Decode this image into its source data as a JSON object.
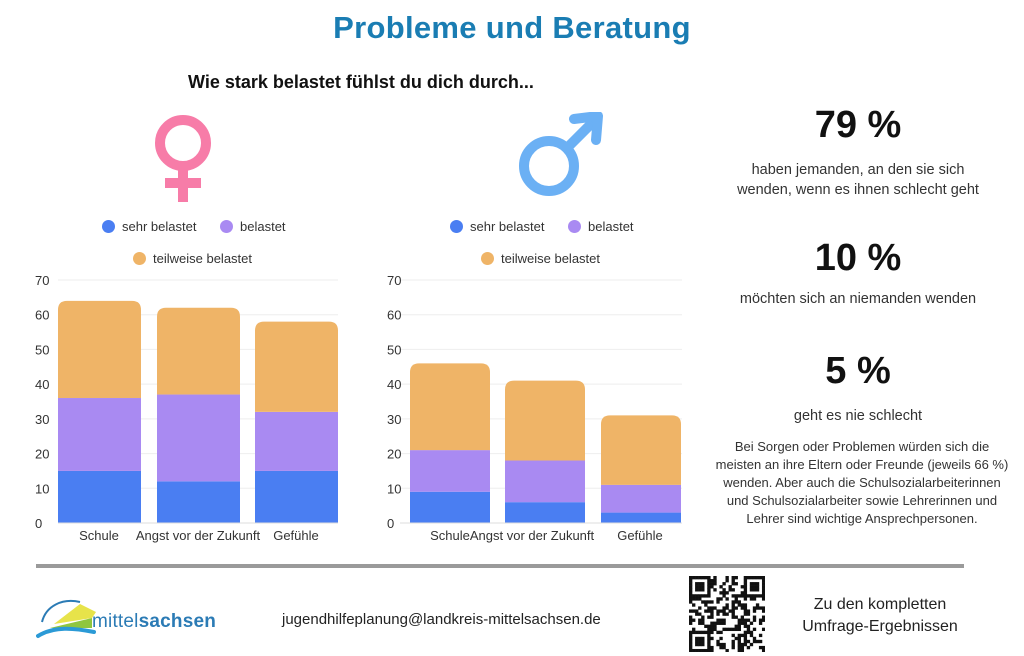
{
  "header": {
    "title": "Probleme und Beratung",
    "subtitle": "Wie stark belastet fühlst du dich durch..."
  },
  "colors": {
    "title": "#1a7db3",
    "sehr_belastet": "#4a7ef2",
    "belastet": "#a98af2",
    "teilweise_belastet": "#efb467",
    "female_symbol": "#f77ca8",
    "male_symbol": "#6bb0f4"
  },
  "icons": {
    "female": "female-symbol-icon",
    "male": "male-symbol-icon"
  },
  "legend": [
    "sehr belastet",
    "belastet",
    "teilweise belastet"
  ],
  "chart_data": [
    {
      "type": "bar",
      "stacked": true,
      "title": "weiblich",
      "categories": [
        "Schule",
        "Angst vor der Zukunft",
        "Gefühle"
      ],
      "series": [
        {
          "name": "sehr belastet",
          "values": [
            15,
            12,
            15
          ]
        },
        {
          "name": "belastet",
          "values": [
            21,
            25,
            17
          ]
        },
        {
          "name": "teilweise belastet",
          "values": [
            28,
            25,
            26
          ]
        }
      ],
      "yticks": [
        "0",
        "10",
        "20",
        "30",
        "40",
        "50",
        "60",
        "70"
      ],
      "ylim": [
        0,
        70
      ],
      "grid": true,
      "legend_position": "top",
      "xlabel": "",
      "ylabel": ""
    },
    {
      "type": "bar",
      "stacked": true,
      "title": "männlich",
      "categories": [
        "Schule",
        "Angst vor der Zukunft",
        "Gefühle"
      ],
      "series": [
        {
          "name": "sehr belastet",
          "values": [
            9,
            6,
            3
          ]
        },
        {
          "name": "belastet",
          "values": [
            12,
            12,
            8
          ]
        },
        {
          "name": "teilweise belastet",
          "values": [
            25,
            23,
            20
          ]
        }
      ],
      "yticks": [
        "0",
        "10",
        "20",
        "30",
        "40",
        "50",
        "60",
        "70"
      ],
      "ylim": [
        0,
        70
      ],
      "grid": true,
      "legend_position": "top",
      "xlabel": "",
      "ylabel": ""
    }
  ],
  "stats": [
    {
      "value": "79 %",
      "text_line1": "haben jemanden, an den sie sich",
      "text_line2": "wenden, wenn es ihnen schlecht geht"
    },
    {
      "value": "10 %",
      "text_line1": "möchten sich an niemanden wenden",
      "text_line2": ""
    },
    {
      "value": "5 %",
      "text_line1": "geht es nie schlecht",
      "text_line2": ""
    }
  ],
  "paragraph": "Bei Sorgen oder Problemen würden sich die meisten an ihre Eltern oder Freunde (jeweils 66 %) wenden. Aber auch die Schulsozialarbeiterinnen und Schulsozialarbeiter sowie Lehrerinnen und Lehrer sind wichtige Ansprechpersonen.",
  "footer": {
    "logo_part1": "mittel",
    "logo_part2": "sachsen",
    "email": "jugendhilfeplanung@landkreis-mittelsachsen.de",
    "qr_caption_line1": "Zu den kompletten",
    "qr_caption_line2": "Umfrage-Ergebnissen"
  }
}
